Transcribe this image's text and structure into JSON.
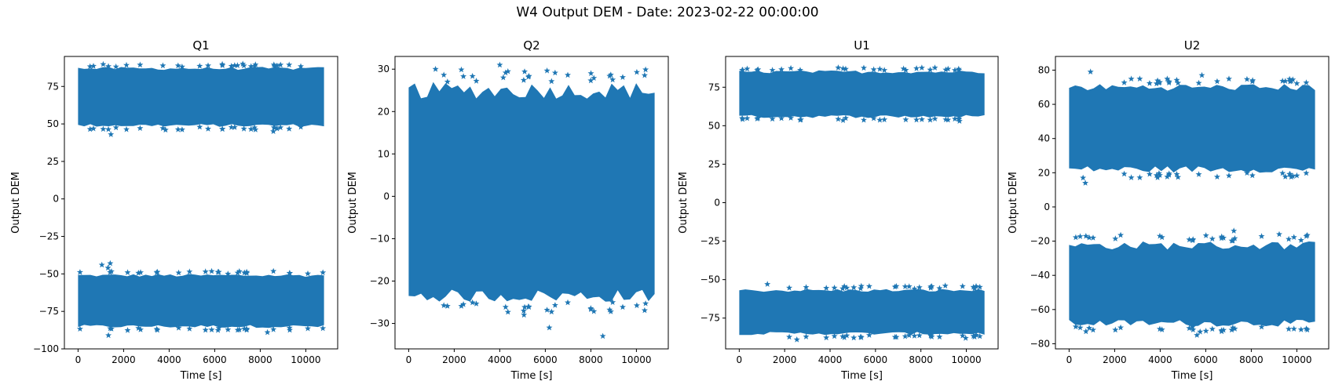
{
  "figure": {
    "title": "W4 Output DEM - Date: 2023-02-22 00:00:00"
  },
  "colors": {
    "series": "#1f77b4",
    "axes": "#000000",
    "background": "#ffffff"
  },
  "chart_data": [
    {
      "type": "scatter",
      "title": "Q1",
      "xlabel": "Time [s]",
      "ylabel": "Output DEM",
      "marker": "star",
      "xlim": [
        -600,
        11400
      ],
      "ylim": [
        -100,
        95
      ],
      "xticks": [
        0,
        2000,
        4000,
        6000,
        8000,
        10000
      ],
      "yticks": [
        -100,
        -75,
        -50,
        -25,
        0,
        25,
        50,
        75
      ],
      "x_range": [
        0,
        10800
      ],
      "bands": [
        {
          "low": [
            -86,
            -84
          ],
          "high": [
            -52,
            -50
          ],
          "outliers_top": [
            -44,
            -43,
            -46
          ],
          "outliers_bottom": [
            -91,
            -89
          ]
        },
        {
          "low": [
            48,
            50
          ],
          "high": [
            86,
            88
          ],
          "outliers_top": [
            89,
            90
          ],
          "outliers_bottom": [
            43,
            45,
            46
          ]
        }
      ]
    },
    {
      "type": "scatter",
      "title": "Q2",
      "xlabel": "Time [s]",
      "ylabel": "Output DEM",
      "marker": "star",
      "xlim": [
        -600,
        11400
      ],
      "ylim": [
        -36,
        33
      ],
      "xticks": [
        0,
        2000,
        4000,
        6000,
        8000,
        10000
      ],
      "yticks": [
        -30,
        -20,
        -10,
        0,
        10,
        20,
        30
      ],
      "x_range": [
        0,
        10800
      ],
      "bands": [
        {
          "low": [
            -25,
            -22
          ],
          "high": [
            23,
            27
          ],
          "outliers_top": [
            28,
            30,
            31
          ],
          "outliers_bottom": [
            -28,
            -31,
            -33
          ]
        }
      ]
    },
    {
      "type": "scatter",
      "title": "U1",
      "xlabel": "Time [s]",
      "ylabel": "Output DEM",
      "marker": "star",
      "xlim": [
        -600,
        11400
      ],
      "ylim": [
        -95,
        95
      ],
      "xticks": [
        0,
        2000,
        4000,
        6000,
        8000,
        10000
      ],
      "yticks": [
        -75,
        -50,
        -25,
        0,
        25,
        50,
        75
      ],
      "x_range": [
        0,
        10800
      ],
      "bands": [
        {
          "low": [
            -86,
            -84
          ],
          "high": [
            -58,
            -56
          ],
          "outliers_top": [
            -54,
            -53
          ],
          "outliers_bottom": [
            -88,
            -89
          ]
        },
        {
          "low": [
            55,
            57
          ],
          "high": [
            84,
            86
          ],
          "outliers_top": [
            87
          ],
          "outliers_bottom": [
            53,
            54
          ]
        }
      ]
    },
    {
      "type": "scatter",
      "title": "U2",
      "xlabel": "Time [s]",
      "ylabel": "Output DEM",
      "marker": "star",
      "xlim": [
        -600,
        11400
      ],
      "ylim": [
        -83,
        88
      ],
      "xticks": [
        0,
        2000,
        4000,
        6000,
        8000,
        10000
      ],
      "yticks": [
        -80,
        -60,
        -40,
        -20,
        0,
        20,
        40,
        60,
        80
      ],
      "x_range": [
        0,
        10800
      ],
      "bands": [
        {
          "low": [
            -70,
            -66
          ],
          "high": [
            -25,
            -20
          ],
          "outliers_top": [
            -16,
            -14
          ],
          "outliers_bottom": [
            -73,
            -75
          ]
        },
        {
          "low": [
            20,
            24
          ],
          "high": [
            68,
            72
          ],
          "outliers_top": [
            74,
            77,
            79
          ],
          "outliers_bottom": [
            17,
            14
          ]
        }
      ]
    }
  ]
}
